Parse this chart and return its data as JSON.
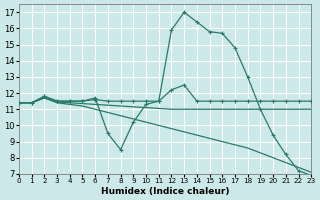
{
  "xlabel": "Humidex (Indice chaleur)",
  "xlim": [
    0,
    23
  ],
  "ylim": [
    7,
    17.5
  ],
  "yticks": [
    7,
    8,
    9,
    10,
    11,
    12,
    13,
    14,
    15,
    16,
    17
  ],
  "xticks": [
    0,
    1,
    2,
    3,
    4,
    5,
    6,
    7,
    8,
    9,
    10,
    11,
    12,
    13,
    14,
    15,
    16,
    17,
    18,
    19,
    20,
    21,
    22,
    23
  ],
  "bg_color": "#cce8e8",
  "grid_color": "#b8d8d8",
  "line_color": "#2a7a6a",
  "series": [
    {
      "x": [
        0,
        1,
        2,
        3,
        4,
        5,
        6,
        7,
        8,
        9,
        10,
        11,
        12,
        13,
        14,
        15,
        16,
        17,
        18,
        19,
        20,
        21,
        22,
        23
      ],
      "y": [
        11.4,
        11.4,
        11.8,
        11.5,
        11.5,
        11.5,
        11.7,
        9.5,
        8.5,
        10.2,
        11.3,
        11.5,
        15.9,
        17.0,
        16.4,
        15.8,
        15.7,
        14.8,
        13.0,
        11.0,
        9.4,
        8.2,
        7.2,
        6.9
      ],
      "marker": true
    },
    {
      "x": [
        0,
        1,
        2,
        3,
        4,
        5,
        6,
        7,
        8,
        9,
        10,
        11,
        12,
        13,
        14,
        15,
        16,
        17,
        18,
        19,
        20,
        21,
        22,
        23
      ],
      "y": [
        11.4,
        11.4,
        11.8,
        11.5,
        11.5,
        11.5,
        11.6,
        11.5,
        11.5,
        11.5,
        11.5,
        11.5,
        12.2,
        12.5,
        11.5,
        11.5,
        11.5,
        11.5,
        11.5,
        11.5,
        11.5,
        11.5,
        11.5,
        11.5
      ],
      "marker": true
    },
    {
      "x": [
        0,
        1,
        2,
        3,
        4,
        5,
        6,
        7,
        8,
        9,
        10,
        11,
        12,
        13,
        14,
        15,
        16,
        17,
        18,
        19,
        20,
        21,
        22,
        23
      ],
      "y": [
        11.4,
        11.4,
        11.7,
        11.45,
        11.4,
        11.35,
        11.3,
        11.25,
        11.2,
        11.15,
        11.1,
        11.05,
        11.0,
        11.0,
        11.0,
        11.0,
        11.0,
        11.0,
        11.0,
        11.0,
        11.0,
        11.0,
        11.0,
        11.0
      ],
      "marker": false
    },
    {
      "x": [
        0,
        1,
        2,
        3,
        4,
        5,
        6,
        7,
        8,
        9,
        10,
        11,
        12,
        13,
        14,
        15,
        16,
        17,
        18,
        19,
        20,
        21,
        22,
        23
      ],
      "y": [
        11.4,
        11.4,
        11.7,
        11.4,
        11.3,
        11.2,
        11.0,
        10.8,
        10.6,
        10.4,
        10.2,
        10.0,
        9.8,
        9.6,
        9.4,
        9.2,
        9.0,
        8.8,
        8.6,
        8.3,
        8.0,
        7.7,
        7.4,
        7.1
      ],
      "marker": false
    }
  ]
}
